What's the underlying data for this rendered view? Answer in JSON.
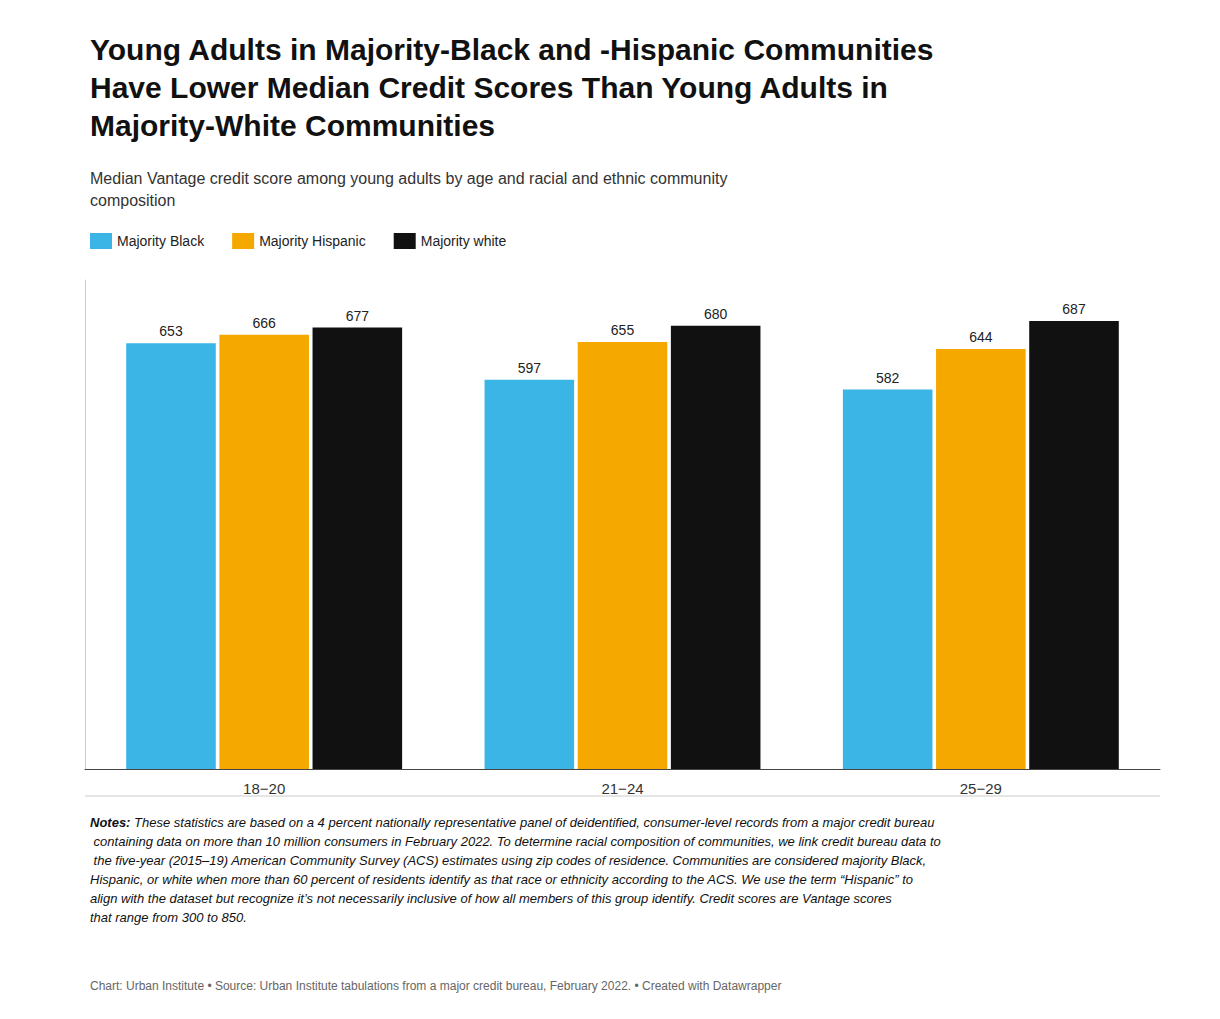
{
  "chart_data": {
    "type": "bar",
    "title": "Young Adults in Majority-Black and -Hispanic Communities\nHave Lower Median Credit Scores Than Young Adults in\nMajority-White Communities",
    "subtitle": "Median Vantage credit score among young adults by age and racial and ethnic community\ncomposition",
    "categories": [
      "18−20",
      "21−24",
      "25−29"
    ],
    "series": [
      {
        "name": "Majority Black",
        "color": "#3ab5e5",
        "values": [
          653,
          597,
          582
        ]
      },
      {
        "name": "Majority Hispanic",
        "color": "#f5a800",
        "values": [
          666,
          655,
          644
        ]
      },
      {
        "name": "Majority white",
        "color": "#111111",
        "values": [
          677,
          680,
          687
        ]
      }
    ],
    "ylim": [
      0,
      750
    ],
    "grid": false,
    "legend": "upper left",
    "data_labels": true,
    "tick_labels": "x",
    "notes_label": "Notes:",
    "notes": "These statistics are based on a 4 percent nationally representative panel of deidentified, consumer-level records from a major credit bureau containing data on more than 10 million consumers in February 2022. To determine racial composition of communities, we link credit bureau data to the five-year (2015–19) American Community Survey (ACS) estimates using zip codes of residence. Communities are considered majority Black, Hispanic, or white when more than 60 percent of residents identify as that race or ethnicity according to the ACS. We use the term “Hispanic” to align with the dataset but recognize it’s not necessarily inclusive of how all members of this group identify. Credit scores are Vantage scores that range from 300 to 850.",
    "source": "Chart: Urban Institute • Source: Urban Institute tabulations from a major credit bureau, February 2022. • Created with Datawrapper"
  }
}
